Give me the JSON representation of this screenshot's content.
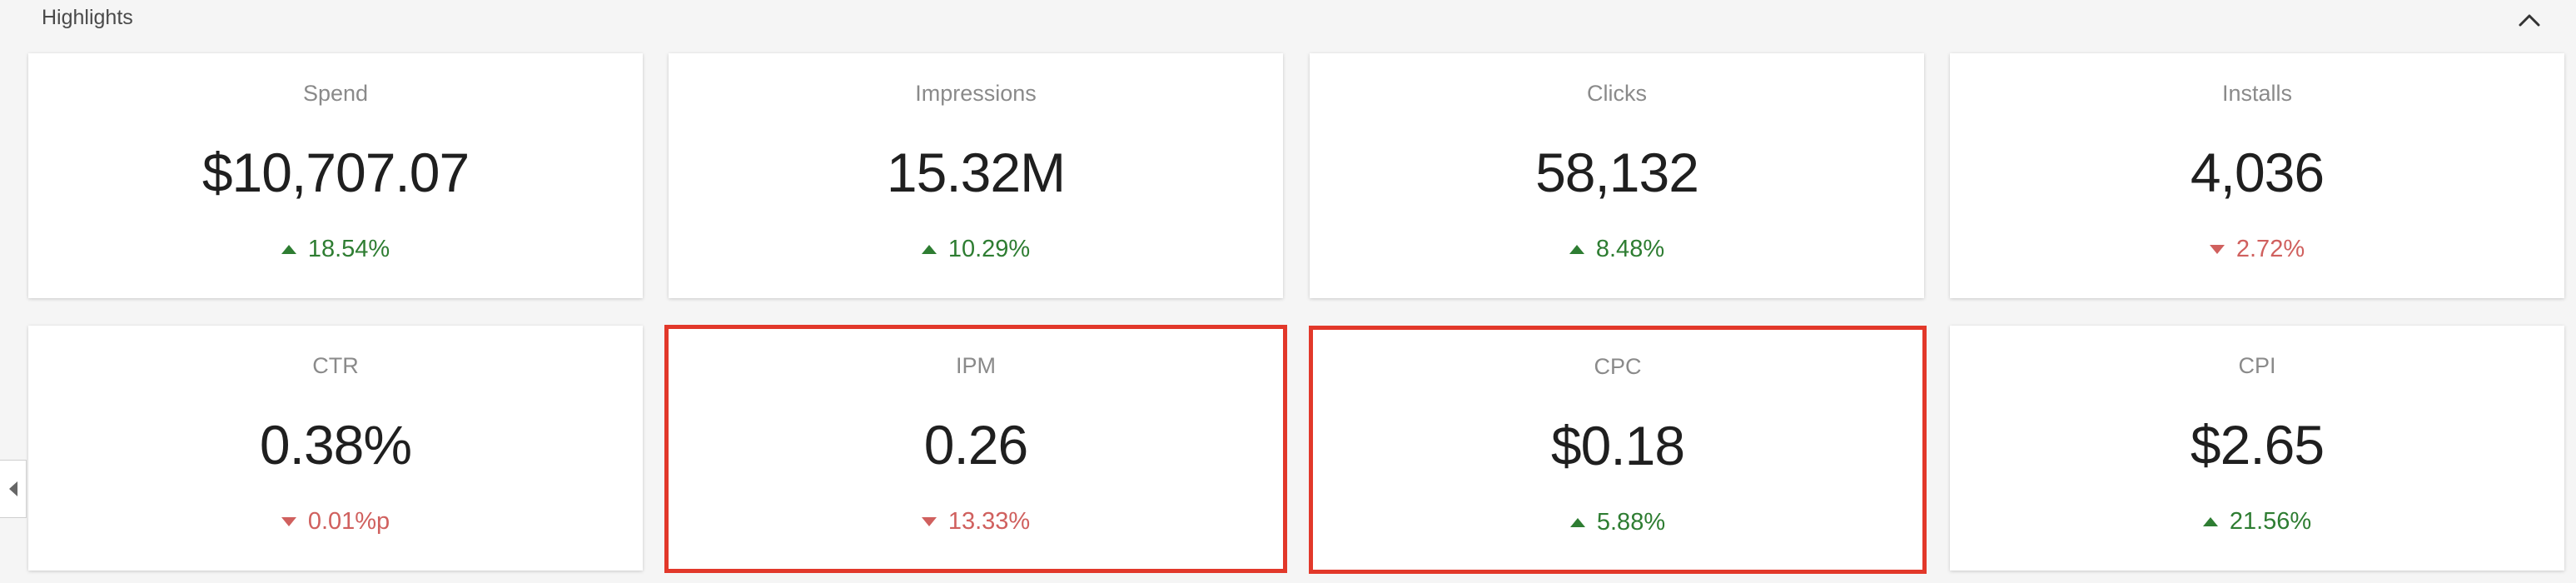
{
  "section": {
    "title": "Highlights"
  },
  "cards": [
    {
      "label": "Spend",
      "value": "$10,707.07",
      "change": "18.54%",
      "direction": "up"
    },
    {
      "label": "Impressions",
      "value": "15.32M",
      "change": "10.29%",
      "direction": "up"
    },
    {
      "label": "Clicks",
      "value": "58,132",
      "change": "8.48%",
      "direction": "up"
    },
    {
      "label": "Installs",
      "value": "4,036",
      "change": "2.72%",
      "direction": "down"
    },
    {
      "label": "CTR",
      "value": "0.38%",
      "change": "0.01%p",
      "direction": "down"
    },
    {
      "label": "IPM",
      "value": "0.26",
      "change": "13.33%",
      "direction": "down"
    },
    {
      "label": "CPC",
      "value": "$0.18",
      "change": "5.88%",
      "direction": "up"
    },
    {
      "label": "CPI",
      "value": "$2.65",
      "change": "21.56%",
      "direction": "up"
    }
  ],
  "colors": {
    "up": "#2e7d32",
    "down": "#d0605e",
    "highlight_border": "#e2382a"
  },
  "icons": {
    "collapse": "chevron-up-icon",
    "side_tab": "caret-left-icon"
  }
}
